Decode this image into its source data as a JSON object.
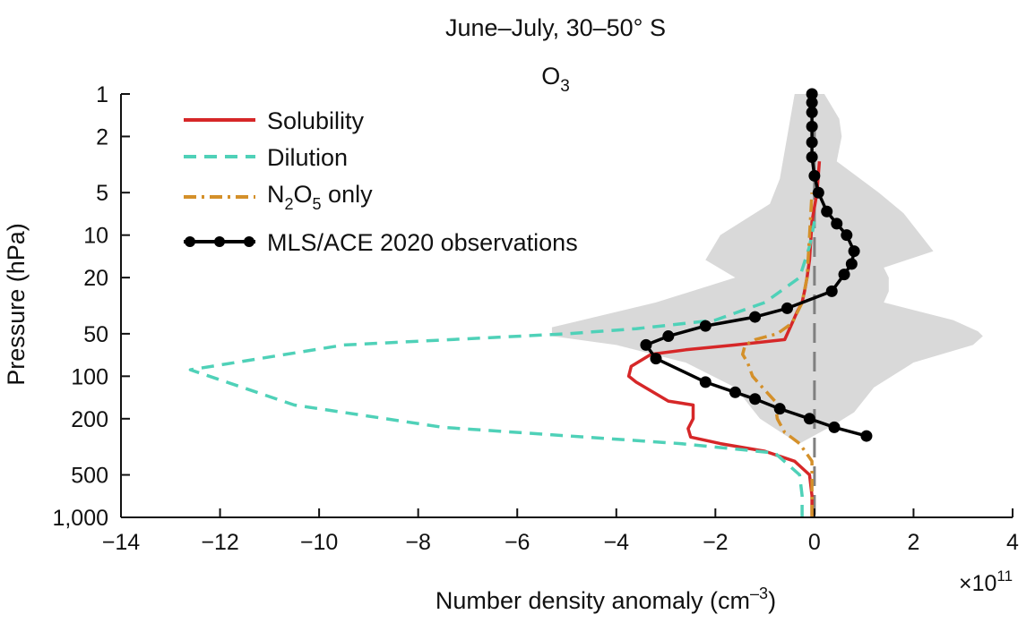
{
  "chart_data": {
    "type": "line",
    "title": "June–July, 30–50° S",
    "subtitle": {
      "main": "O",
      "sub": "3"
    },
    "xlabel": {
      "main": "Number density anomaly (cm",
      "sup": "–3",
      "end": ")"
    },
    "ylabel": "Pressure (hPa)",
    "x_multiplier": {
      "main": "×10",
      "sup": "11"
    },
    "xlim": [
      -14,
      4
    ],
    "ylim": [
      1000,
      1
    ],
    "yscale": "log",
    "x_ticks": [
      -14,
      -12,
      -10,
      -8,
      -6,
      -4,
      -2,
      0,
      2,
      4
    ],
    "x_tick_labels": [
      "−14",
      "−12",
      "−10",
      "−8",
      "−6",
      "−4",
      "−2",
      "0",
      "2",
      "4"
    ],
    "y_ticks": [
      1,
      2,
      5,
      10,
      20,
      50,
      100,
      200,
      500,
      1000
    ],
    "y_tick_labels": [
      "1",
      "2",
      "5",
      "10",
      "20",
      "50",
      "100",
      "200",
      "500",
      "1,000"
    ],
    "legend_position": "top-left",
    "legend": [
      {
        "label": "Solubility",
        "series": "Solubility"
      },
      {
        "label": "Dilution",
        "series": "Dilution"
      },
      {
        "label_parts": [
          "N",
          "2",
          "O",
          "5",
          " only"
        ],
        "series": "N2O5 only"
      },
      {
        "label": "MLS/ACE 2020 observations",
        "series": "MLS/ACE 2020 observations"
      }
    ],
    "series": [
      {
        "name": "Solubility",
        "color": "#d62728",
        "style": "solid",
        "points": [
          [
            -0.05,
            1000
          ],
          [
            -0.05,
            700
          ],
          [
            -0.1,
            500
          ],
          [
            -0.4,
            400
          ],
          [
            -1.0,
            340
          ],
          [
            -1.9,
            300
          ],
          [
            -2.5,
            270
          ],
          [
            -2.55,
            235
          ],
          [
            -2.45,
            200
          ],
          [
            -2.45,
            160
          ],
          [
            -2.95,
            150
          ],
          [
            -3.6,
            110
          ],
          [
            -3.75,
            100
          ],
          [
            -3.7,
            85
          ],
          [
            -3.3,
            70
          ],
          [
            -2.6,
            65
          ],
          [
            -1.6,
            60
          ],
          [
            -0.6,
            55
          ],
          [
            -0.45,
            42
          ],
          [
            -0.35,
            35
          ],
          [
            -0.25,
            30
          ],
          [
            -0.2,
            25
          ],
          [
            -0.15,
            20
          ],
          [
            -0.1,
            15
          ],
          [
            -0.05,
            8
          ],
          [
            0.05,
            5
          ],
          [
            0.1,
            3
          ]
        ]
      },
      {
        "name": "Dilution",
        "color": "#4fd1b8",
        "style": "dashed",
        "points": [
          [
            -0.25,
            1000
          ],
          [
            -0.25,
            700
          ],
          [
            -0.3,
            500
          ],
          [
            -0.8,
            350
          ],
          [
            -2.7,
            300
          ],
          [
            -7.5,
            230
          ],
          [
            -10.5,
            160
          ],
          [
            -12.6,
            90
          ],
          [
            -9.5,
            60
          ],
          [
            -5.0,
            50
          ],
          [
            -3.6,
            46
          ],
          [
            -2.0,
            40
          ],
          [
            -1.0,
            30
          ],
          [
            -0.3,
            20
          ],
          [
            -0.1,
            12
          ],
          [
            0.0,
            8
          ]
        ]
      },
      {
        "name": "N2O5 only",
        "color": "#d4902a",
        "style": "dashdot",
        "points": [
          [
            -0.05,
            1000
          ],
          [
            -0.05,
            500
          ],
          [
            -0.05,
            400
          ],
          [
            -0.3,
            300
          ],
          [
            -0.6,
            250
          ],
          [
            -0.75,
            200
          ],
          [
            -0.8,
            150
          ],
          [
            -1.05,
            120
          ],
          [
            -1.25,
            100
          ],
          [
            -1.35,
            80
          ],
          [
            -1.45,
            70
          ],
          [
            -1.4,
            60
          ],
          [
            -1.2,
            55
          ],
          [
            -0.75,
            50
          ],
          [
            -0.45,
            42
          ],
          [
            -0.25,
            30
          ],
          [
            -0.15,
            20
          ],
          [
            -0.1,
            10
          ],
          [
            -0.05,
            5
          ]
        ]
      },
      {
        "name": "MLS/ACE 2020 observations",
        "color": "#000000",
        "style": "solid-markers",
        "points": [
          [
            1.05,
            265
          ],
          [
            0.4,
            230
          ],
          [
            -0.1,
            200
          ],
          [
            -0.7,
            170
          ],
          [
            -1.2,
            145
          ],
          [
            -1.6,
            130
          ],
          [
            -2.2,
            110
          ],
          [
            -3.2,
            75
          ],
          [
            -3.4,
            60
          ],
          [
            -2.95,
            52
          ],
          [
            -2.2,
            44
          ],
          [
            -1.2,
            38
          ],
          [
            -0.55,
            33
          ],
          [
            0.35,
            25
          ],
          [
            0.6,
            19
          ],
          [
            0.75,
            16
          ],
          [
            0.8,
            13
          ],
          [
            0.65,
            10
          ],
          [
            0.45,
            8.3
          ],
          [
            0.25,
            6.8
          ],
          [
            0.08,
            5
          ],
          [
            0.0,
            3.8
          ],
          [
            -0.05,
            2.8
          ],
          [
            -0.05,
            2.2
          ],
          [
            -0.05,
            1.7
          ],
          [
            -0.05,
            1.35
          ],
          [
            -0.05,
            1.15
          ],
          [
            -0.05,
            1.0
          ]
        ]
      }
    ],
    "uncertainty_band": {
      "name": "observation range",
      "color": "#d9d9d9",
      "left": [
        [
          -0.4,
          1.0
        ],
        [
          -0.55,
          2
        ],
        [
          -0.7,
          4
        ],
        [
          -0.9,
          6
        ],
        [
          -1.9,
          10
        ],
        [
          -2.2,
          15
        ],
        [
          -1.6,
          20
        ],
        [
          -3.2,
          30
        ],
        [
          -5.3,
          45
        ],
        [
          -5.3,
          52
        ],
        [
          -4.0,
          60
        ],
        [
          -2.6,
          80
        ],
        [
          -1.6,
          120
        ],
        [
          -1.1,
          200
        ],
        [
          -0.6,
          260
        ],
        [
          -0.3,
          300
        ]
      ],
      "right": [
        [
          0.2,
          1.0
        ],
        [
          0.5,
          1.5
        ],
        [
          0.55,
          2
        ],
        [
          0.45,
          3
        ],
        [
          1.3,
          5
        ],
        [
          1.8,
          7
        ],
        [
          2.4,
          13
        ],
        [
          1.4,
          17
        ],
        [
          1.5,
          20
        ],
        [
          1.5,
          25
        ],
        [
          1.4,
          30
        ],
        [
          2.8,
          40
        ],
        [
          3.3,
          48
        ],
        [
          3.4,
          52
        ],
        [
          3.2,
          60
        ],
        [
          2.0,
          80
        ],
        [
          1.2,
          120
        ],
        [
          0.8,
          180
        ],
        [
          0.4,
          220
        ]
      ]
    },
    "reference_line": {
      "x": 0,
      "color": "#808080",
      "style": "dashed"
    }
  }
}
